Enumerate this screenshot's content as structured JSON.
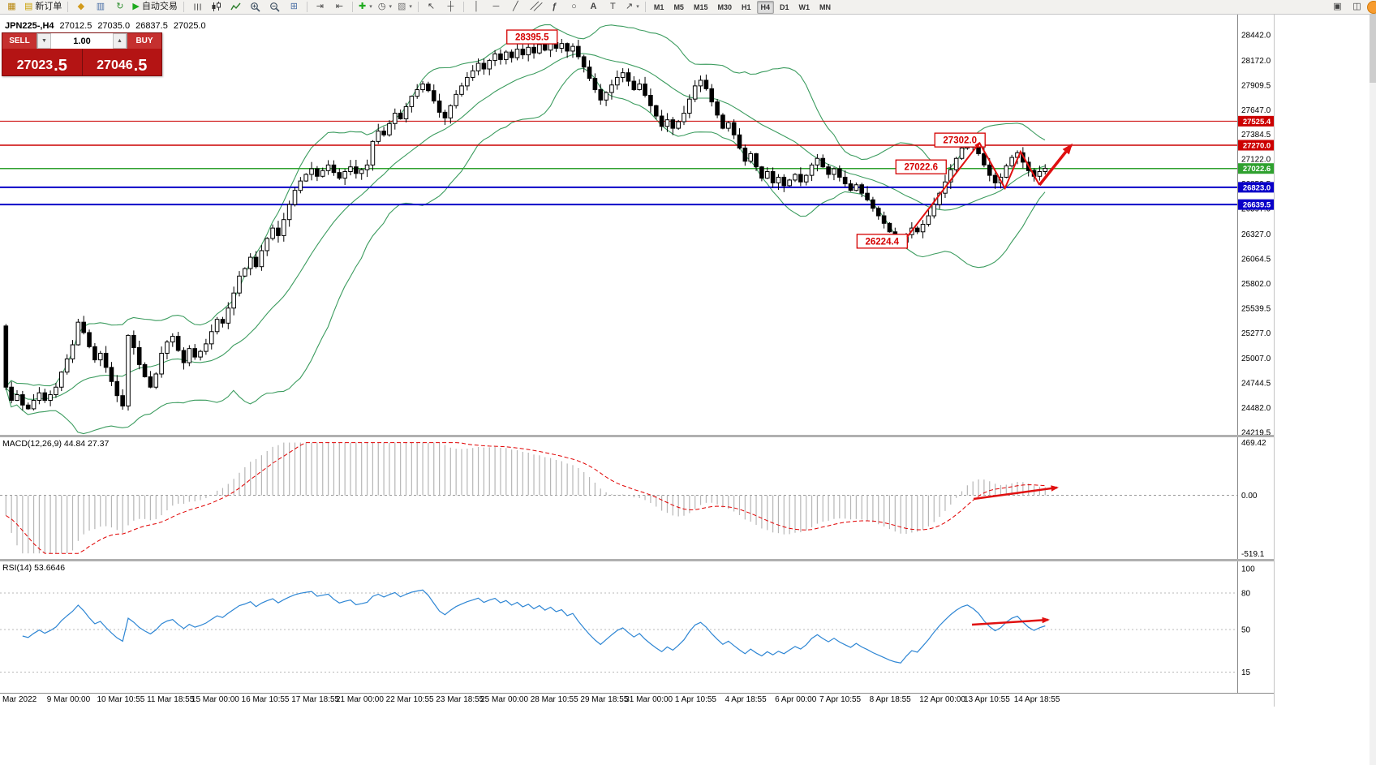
{
  "toolbar": {
    "new_order_label": "新订单",
    "autotrading_label": "自动交易",
    "timeframes": [
      "M1",
      "M5",
      "M15",
      "M30",
      "H1",
      "H4",
      "D1",
      "W1",
      "MN"
    ],
    "active_timeframe": "H4"
  },
  "icons": {
    "new_chart": "▦",
    "new_order": "▤",
    "profiles": "◆",
    "charts_grid": "▥",
    "refresh": "↻",
    "autotrading_play": "▶",
    "tile_windows": "⊞",
    "auto_scroll": "⇥",
    "chart_shift": "⇤",
    "indicators_add": "✚",
    "periods_clock": "◷",
    "templates": "▧",
    "cursor": "↖",
    "crosshair": "┼",
    "vertical_line": "│",
    "horizontal_line": "─",
    "trendline": "╱",
    "channel": "╱╱",
    "fibonacci": "ƒ",
    "shapes": "○",
    "text": "A",
    "label": "T",
    "arrows": "↗",
    "dropdown": "▾",
    "screenshot": "▣",
    "layout": "◫",
    "lot_down": "▼",
    "lot_up": "▲"
  },
  "trade_panel": {
    "sell_label": "SELL",
    "buy_label": "BUY",
    "lot_size": "1.00",
    "sell_price": "27023",
    "sell_price_frac": ".5",
    "buy_price": "27046",
    "buy_price_frac": ".5"
  },
  "chart_info": {
    "symbol_period": "JPN225-,H4",
    "open": "27012.5",
    "high": "27035.0",
    "low": "26837.5",
    "close": "27025.0"
  },
  "indicators": {
    "macd_label": "MACD(12,26,9) 44.84 27.37",
    "rsi_label": "RSI(14) 53.6646",
    "macd_axis": [
      "469.42",
      "0.00",
      "-519.1"
    ],
    "rsi_axis": [
      "100",
      "80",
      "50",
      "15"
    ]
  },
  "price_axis": {
    "max": 28442.0,
    "min": 24219.5,
    "labels": [
      "28442.0",
      "28172.0",
      "27909.5",
      "27647.0",
      "27384.5",
      "27122.0",
      "26859.5",
      "26597.0",
      "26327.0",
      "26064.5",
      "25802.0",
      "25539.5",
      "25277.0",
      "25007.0",
      "24744.5",
      "24482.0",
      "24219.5"
    ]
  },
  "time_axis": {
    "labels": [
      {
        "text": "Mar 2022",
        "ci": 0
      },
      {
        "text": "9 Mar 00:00",
        "ci": 8
      },
      {
        "text": "10 Mar 10:55",
        "ci": 17
      },
      {
        "text": "11 Mar 18:55",
        "ci": 26
      },
      {
        "text": "15 Mar 00:00",
        "ci": 34
      },
      {
        "text": "16 Mar 10:55",
        "ci": 43
      },
      {
        "text": "17 Mar 18:55",
        "ci": 52
      },
      {
        "text": "21 Mar 00:00",
        "ci": 60
      },
      {
        "text": "22 Mar 10:55",
        "ci": 69
      },
      {
        "text": "23 Mar 18:55",
        "ci": 78
      },
      {
        "text": "25 Mar 00:00",
        "ci": 86
      },
      {
        "text": "28 Mar 10:55",
        "ci": 95
      },
      {
        "text": "29 Mar 18:55",
        "ci": 104
      },
      {
        "text": "31 Mar 00:00",
        "ci": 112
      },
      {
        "text": "1 Apr 10:55",
        "ci": 121
      },
      {
        "text": "4 Apr 18:55",
        "ci": 130
      },
      {
        "text": "6 Apr 00:00",
        "ci": 139
      },
      {
        "text": "7 Apr 10:55",
        "ci": 147
      },
      {
        "text": "8 Apr 18:55",
        "ci": 156
      },
      {
        "text": "12 Apr 00:00",
        "ci": 165
      },
      {
        "text": "13 Apr 10:55",
        "ci": 173
      },
      {
        "text": "14 Apr 18:55",
        "ci": 182
      }
    ]
  },
  "levels": [
    {
      "price": 27525.4,
      "color": "#cc0000",
      "width": 1,
      "tag": "27525.4"
    },
    {
      "price": 27270.0,
      "color": "#cc0000",
      "width": 1.5,
      "tag": "27270.0"
    },
    {
      "price": 27022.6,
      "color": "#2fa12f",
      "width": 1.5,
      "tag": "27022.6"
    },
    {
      "price": 26823.0,
      "color": "#0a00c8",
      "width": 2,
      "tag": "26823.0"
    },
    {
      "price": 26639.5,
      "color": "#0a00c8",
      "width": 2,
      "tag": "26639.5"
    }
  ],
  "annotations": [
    {
      "text": "28395.5",
      "ci": 95,
      "price": 28420
    },
    {
      "text": "27302.0",
      "ci": 172,
      "price": 27325
    },
    {
      "text": "27022.6",
      "ci": 165,
      "price": 27040
    },
    {
      "text": "26224.4",
      "ci": 158,
      "price": 26250
    }
  ],
  "drawings": {
    "trend_arrows": [
      {
        "points": [
          [
            162.5,
            26296
          ],
          [
            175.5,
            27296
          ]
        ],
        "width": 2,
        "head": true
      },
      {
        "points": [
          [
            175.5,
            27296
          ],
          [
            180.1,
            26813
          ],
          [
            182.9,
            27201
          ],
          [
            186.3,
            26848
          ]
        ],
        "width": 2,
        "head": false
      },
      {
        "points": [
          [
            186.3,
            26848
          ],
          [
            192.0,
            27270
          ]
        ],
        "width": 3.5,
        "head": true
      }
    ],
    "macd_arrow": {
      "points": [
        [
          1200,
          76
        ],
        [
          1303,
          62
        ]
      ],
      "width": 2.5,
      "head": true
    },
    "rsi_arrow": {
      "points": [
        [
          1198,
          78
        ],
        [
          1292,
          72
        ]
      ],
      "width": 2.5,
      "head": true
    }
  },
  "colors": {
    "bollinger": "#3c9c5f",
    "candle_up": "#ffffff",
    "candle_down": "#000000",
    "macd_histogram": "#b6b6b6",
    "macd_signal": "#e00000",
    "rsi_line": "#2e86d4",
    "annotation": "#d40000",
    "arrow": "#e01010"
  },
  "chart_data": {
    "type": "candlestick",
    "symbol": "JPN225-",
    "period": "H4",
    "title": "JPN225-,H4",
    "first_open": 25350,
    "extremes": {
      "high": 28395.5,
      "recent_low": 26224.4
    },
    "overlays": {
      "bollinger_period": 20,
      "bollinger_dev": 2
    },
    "subcharts": [
      {
        "type": "macd",
        "params": [
          12,
          26,
          9
        ],
        "values": [
          44.84,
          27.37
        ]
      },
      {
        "type": "rsi",
        "params": [
          14
        ],
        "value": 53.6646
      }
    ],
    "ylim": [
      24219.5,
      28442.0
    ],
    "closes": [
      24700,
      24560,
      24620,
      24510,
      24470,
      24560,
      24640,
      24560,
      24620,
      24700,
      24860,
      25000,
      25150,
      25390,
      25280,
      25130,
      24990,
      25060,
      24910,
      24760,
      24610,
      24500,
      25250,
      25120,
      24940,
      24810,
      24700,
      24840,
      25060,
      25180,
      25240,
      25090,
      24960,
      25110,
      25020,
      25080,
      25160,
      25290,
      25420,
      25380,
      25540,
      25700,
      25880,
      25960,
      26080,
      25980,
      26150,
      26280,
      26390,
      26310,
      26480,
      26640,
      26790,
      26890,
      26960,
      27020,
      26940,
      27000,
      27060,
      26980,
      26920,
      26990,
      27040,
      26970,
      27010,
      27060,
      27310,
      27420,
      27380,
      27500,
      27610,
      27550,
      27680,
      27790,
      27860,
      27920,
      27850,
      27740,
      27620,
      27560,
      27690,
      27810,
      27900,
      27990,
      28060,
      28140,
      28080,
      28170,
      28240,
      28180,
      28260,
      28200,
      28290,
      28230,
      28310,
      28250,
      28340,
      28280,
      28360,
      28300,
      28350,
      28270,
      28320,
      28210,
      28100,
      27980,
      27860,
      27750,
      27830,
      27910,
      27990,
      28040,
      27950,
      27860,
      27920,
      27800,
      27690,
      27580,
      27470,
      27540,
      27450,
      27520,
      27610,
      27760,
      27900,
      27960,
      27870,
      27730,
      27590,
      27450,
      27510,
      27380,
      27240,
      27100,
      27180,
      27040,
      26920,
      26990,
      26870,
      26930,
      26840,
      26900,
      26960,
      26880,
      26950,
      27060,
      27130,
      27040,
      26960,
      27020,
      26930,
      26860,
      26790,
      26850,
      26760,
      26690,
      26600,
      26520,
      26440,
      26350,
      26280,
      26240,
      26320,
      26390,
      26350,
      26430,
      26520,
      26640,
      26760,
      26880,
      27010,
      27130,
      27240,
      27300,
      27250,
      27180,
      27060,
      26950,
      26870,
      26930,
      27050,
      27140,
      27190,
      27090,
      27000,
      26940,
      26990,
      27025
    ]
  }
}
